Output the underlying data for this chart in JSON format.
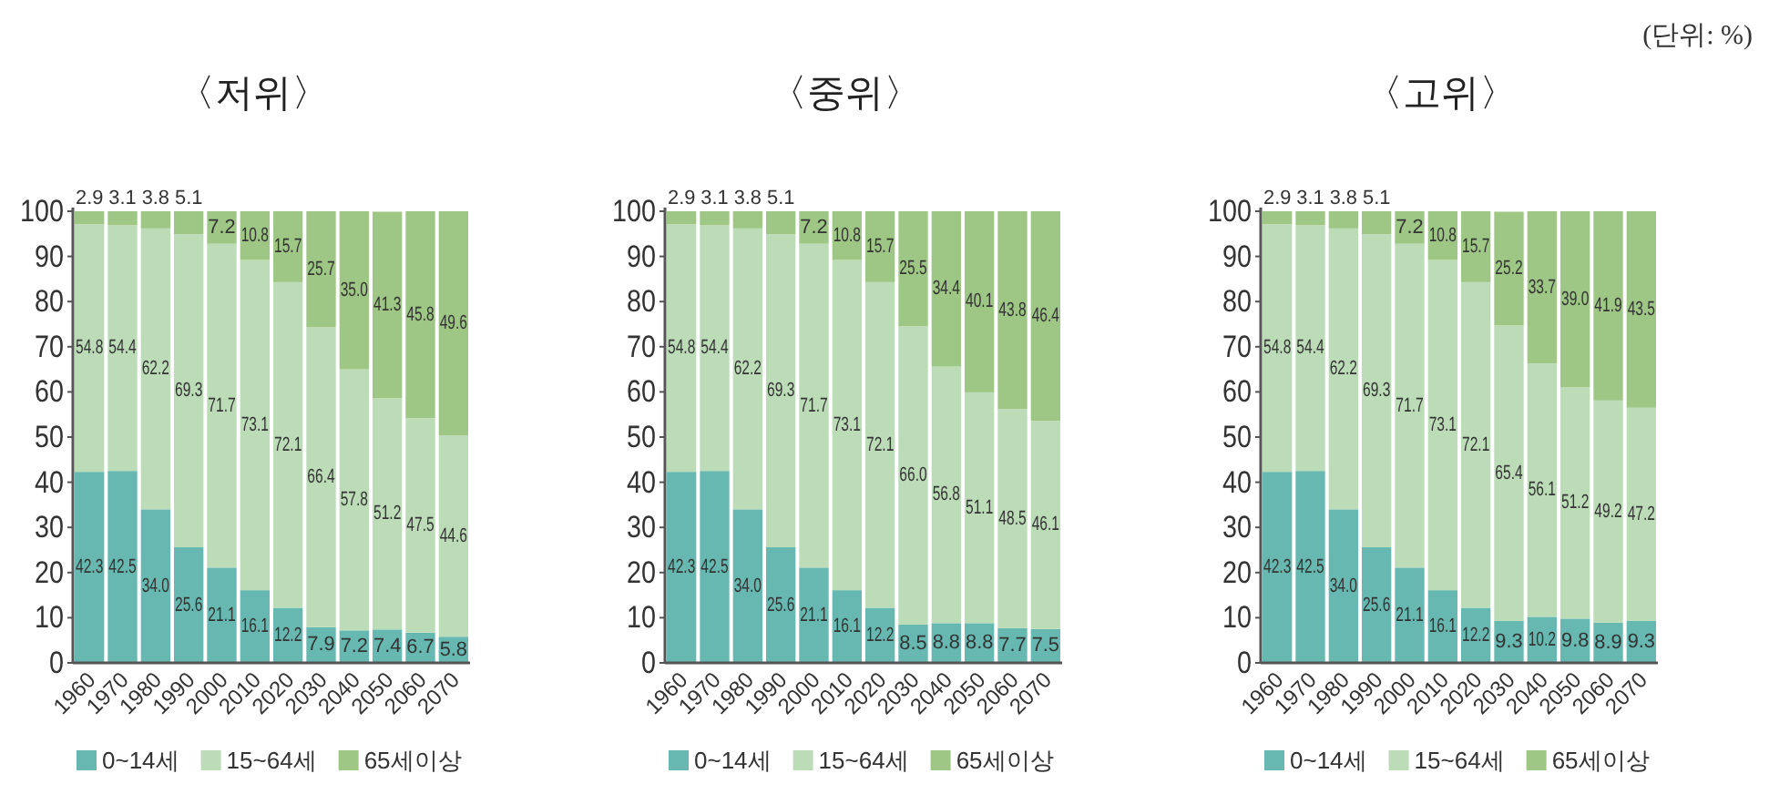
{
  "chart_data": [
    {
      "type": "bar",
      "title": "〈저위〉",
      "stacked": true,
      "data_labels": true,
      "legend": "bottom",
      "ylim": [
        0,
        100
      ],
      "yticks": [
        0,
        10,
        20,
        30,
        40,
        50,
        60,
        70,
        80,
        90,
        100
      ],
      "categories": [
        "1960",
        "1970",
        "1980",
        "1990",
        "2000",
        "2010",
        "2020",
        "2030",
        "2040",
        "2050",
        "2060",
        "2070"
      ],
      "series": [
        {
          "name": "0~14세",
          "color": "#66b8b0",
          "values": [
            42.3,
            42.5,
            34.0,
            25.6,
            21.1,
            16.1,
            12.2,
            7.9,
            7.2,
            7.4,
            6.7,
            5.8
          ],
          "value_labels": [
            "42.3",
            "42.5",
            "34.0",
            "25.6",
            "21.1",
            "16.1",
            "12.2",
            "7.9",
            "7.2",
            "7.4",
            "6.7",
            "5.8"
          ]
        },
        {
          "name": "15~64세",
          "color": "#bcdcb8",
          "values": [
            54.8,
            54.4,
            62.2,
            69.3,
            71.7,
            73.1,
            72.1,
            66.4,
            57.8,
            51.2,
            47.5,
            44.6
          ]
        },
        {
          "name": "65세이상",
          "color": "#9ec785",
          "values": [
            2.9,
            3.1,
            3.8,
            5.1,
            7.2,
            10.8,
            15.7,
            25.7,
            35.0,
            41.3,
            45.8,
            49.6
          ],
          "value_labels": [
            "2.9",
            "3.1",
            "3.8",
            "5.1",
            "7.2",
            "10.8",
            "15.7",
            "25.7",
            "35.0",
            "41.3",
            "45.8",
            "49.6"
          ]
        }
      ]
    },
    {
      "type": "bar",
      "title": "〈중위〉",
      "stacked": true,
      "data_labels": true,
      "legend": "bottom",
      "ylim": [
        0,
        100
      ],
      "yticks": [
        0,
        10,
        20,
        30,
        40,
        50,
        60,
        70,
        80,
        90,
        100
      ],
      "categories": [
        "1960",
        "1970",
        "1980",
        "1990",
        "2000",
        "2010",
        "2020",
        "2030",
        "2040",
        "2050",
        "2060",
        "2070"
      ],
      "series": [
        {
          "name": "0~14세",
          "color": "#66b8b0",
          "values": [
            42.3,
            42.5,
            34.0,
            25.6,
            21.1,
            16.1,
            12.2,
            8.5,
            8.8,
            8.8,
            7.7,
            7.5
          ],
          "value_labels": [
            "42.3",
            "42.5",
            "34.0",
            "25.6",
            "21.1",
            "16.1",
            "12.2",
            "8.5",
            "8.8",
            "8.8",
            "7.7",
            "7.5"
          ]
        },
        {
          "name": "15~64세",
          "color": "#bcdcb8",
          "values": [
            54.8,
            54.4,
            62.2,
            69.3,
            71.7,
            73.1,
            72.1,
            66.0,
            56.8,
            51.1,
            48.5,
            46.1
          ],
          "value_labels": [
            "54.8",
            "54.4",
            "62.2",
            "69.3",
            "71.7",
            "73.1",
            "72.1",
            "66.0",
            "56.8",
            "51.1",
            "48.5",
            "46.1"
          ]
        },
        {
          "name": "65세이상",
          "color": "#9ec785",
          "values": [
            2.9,
            3.1,
            3.8,
            5.1,
            7.2,
            10.8,
            15.7,
            25.5,
            34.4,
            40.1,
            43.8,
            46.4
          ]
        }
      ]
    },
    {
      "type": "bar",
      "title": "〈고위〉",
      "stacked": true,
      "data_labels": true,
      "legend": "bottom",
      "ylim": [
        0,
        100
      ],
      "yticks": [
        0,
        10,
        20,
        30,
        40,
        50,
        60,
        70,
        80,
        90,
        100
      ],
      "annotations": [
        "(단위: %)"
      ],
      "categories": [
        "1960",
        "1970",
        "1980",
        "1990",
        "2000",
        "2010",
        "2020",
        "2030",
        "2040",
        "2050",
        "2060",
        "2070"
      ],
      "series": [
        {
          "name": "0~14세",
          "color": "#66b8b0",
          "values": [
            42.3,
            42.5,
            34.0,
            25.6,
            21.1,
            16.1,
            12.2,
            9.3,
            10.2,
            9.8,
            8.9,
            9.3
          ],
          "value_labels": [
            "42.3",
            "42.5",
            "34.0",
            "25.6",
            "21.1",
            "16.1",
            "12.2",
            "9.3",
            "10.2",
            "9.8",
            "8.9",
            "9.3"
          ]
        },
        {
          "name": "15~64세",
          "color": "#bcdcb8",
          "values": [
            54.8,
            54.4,
            62.2,
            69.3,
            71.7,
            73.1,
            72.1,
            65.4,
            56.1,
            51.2,
            49.2,
            47.2
          ]
        },
        {
          "name": "65세이상",
          "color": "#9ec785",
          "values": [
            2.9,
            3.1,
            3.8,
            5.1,
            7.2,
            10.8,
            15.7,
            25.2,
            33.7,
            39.0,
            41.9,
            43.5
          ],
          "value_labels": [
            "2.9",
            "3.1",
            "3.8",
            "5.1",
            "7.2",
            "10.8",
            "15.7",
            "25.2",
            "33.7",
            "39.0",
            "41.9",
            "43.5"
          ]
        }
      ]
    }
  ]
}
